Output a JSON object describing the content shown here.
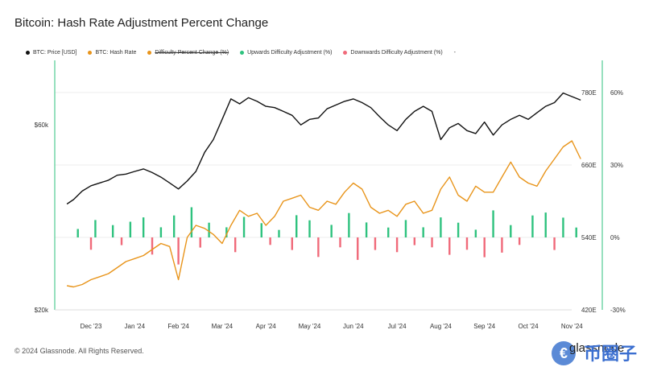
{
  "page": {
    "title": "Bitcoin: Hash Rate Adjustment Percent Change",
    "footer": "© 2024 Glassnode. All Rights Reserved.",
    "brand_text": "glassnode",
    "brand_cn": "币圈子"
  },
  "legend": [
    {
      "label": "BTC: Price [USD]",
      "color": "#111111",
      "strike": false
    },
    {
      "label": "BTC: Hash Rate",
      "color": "#e8941a",
      "strike": false
    },
    {
      "label": "Difficulty Percent Change (%)",
      "color": "#e8941a",
      "strike": true
    },
    {
      "label": "Upwards Difficulty Adjustment (%)",
      "color": "#2ec27e",
      "strike": false
    },
    {
      "label": "Downwards Difficulty Adjustment (%)",
      "color": "#f06a7a",
      "strike": false
    },
    {
      "label": "-",
      "color": "",
      "strike": false
    }
  ],
  "chart_data": {
    "type": "line",
    "title": "Bitcoin: Hash Rate Adjustment Percent Change",
    "x_ticks": [
      "Dec '23",
      "Jan '24",
      "Feb '24",
      "Mar '24",
      "Apr '24",
      "May '24",
      "Jun '24",
      "Jul '24",
      "Aug '24",
      "Sep '24",
      "Oct '24",
      "Nov '24"
    ],
    "x_range": [
      0,
      12
    ],
    "y_left_label_ticks": [
      "$20k",
      "$60k"
    ],
    "y_left_log_range": [
      20000,
      80000
    ],
    "y_hash_ticks": [
      "420E",
      "540E",
      "660E",
      "780E"
    ],
    "y_hash_range": [
      420,
      780
    ],
    "y_pct_ticks": [
      "-30%",
      "0%",
      "30%",
      "60%"
    ],
    "y_pct_range": [
      -30,
      60
    ],
    "series": [
      {
        "name": "BTC: Price [USD]",
        "color": "#111111",
        "axis": "price",
        "x": [
          -0.55,
          -0.4,
          -0.2,
          0,
          0.2,
          0.4,
          0.6,
          0.8,
          1.0,
          1.2,
          1.4,
          1.6,
          1.8,
          2.0,
          2.2,
          2.4,
          2.6,
          2.8,
          3.0,
          3.2,
          3.4,
          3.6,
          3.8,
          4.0,
          4.2,
          4.4,
          4.6,
          4.8,
          5.0,
          5.2,
          5.4,
          5.6,
          5.8,
          6.0,
          6.2,
          6.4,
          6.6,
          6.8,
          7.0,
          7.2,
          7.4,
          7.6,
          7.8,
          8.0,
          8.2,
          8.4,
          8.6,
          8.8,
          9.0,
          9.2,
          9.4,
          9.6,
          9.8,
          10.0,
          10.2,
          10.4,
          10.6,
          10.8,
          11.0,
          11.2
        ],
        "values": [
          37500,
          38500,
          40500,
          41800,
          42500,
          43200,
          44500,
          44800,
          45500,
          46200,
          45200,
          44000,
          42500,
          41000,
          43000,
          45500,
          51000,
          55000,
          62000,
          70000,
          68000,
          70500,
          69000,
          67000,
          66500,
          65000,
          63500,
          60000,
          62000,
          62500,
          66000,
          67500,
          69000,
          70000,
          68500,
          66500,
          63000,
          60000,
          58000,
          62000,
          65000,
          67000,
          65000,
          55000,
          59000,
          60500,
          58000,
          57000,
          61000,
          56500,
          60000,
          62000,
          63500,
          62000,
          64500,
          67000,
          68500,
          72500,
          71000,
          69500
        ]
      },
      {
        "name": "BTC: Hash Rate",
        "color": "#e8941a",
        "axis": "hash",
        "x": [
          -0.55,
          -0.4,
          -0.2,
          0,
          0.2,
          0.4,
          0.6,
          0.8,
          1.0,
          1.2,
          1.4,
          1.6,
          1.8,
          2.0,
          2.2,
          2.4,
          2.6,
          2.8,
          3.0,
          3.2,
          3.4,
          3.6,
          3.8,
          4.0,
          4.2,
          4.4,
          4.6,
          4.8,
          5.0,
          5.2,
          5.4,
          5.6,
          5.8,
          6.0,
          6.2,
          6.4,
          6.6,
          6.8,
          7.0,
          7.2,
          7.4,
          7.6,
          7.8,
          8.0,
          8.2,
          8.4,
          8.6,
          8.8,
          9.0,
          9.2,
          9.4,
          9.6,
          9.8,
          10.0,
          10.2,
          10.4,
          10.6,
          10.8,
          11.0,
          11.2
        ],
        "values": [
          460,
          458,
          462,
          470,
          475,
          480,
          490,
          500,
          505,
          510,
          520,
          530,
          525,
          470,
          540,
          560,
          555,
          545,
          530,
          560,
          585,
          575,
          580,
          560,
          575,
          600,
          605,
          610,
          590,
          585,
          600,
          595,
          615,
          630,
          620,
          590,
          580,
          585,
          575,
          595,
          600,
          580,
          585,
          620,
          640,
          610,
          600,
          625,
          615,
          615,
          640,
          665,
          640,
          630,
          625,
          650,
          670,
          690,
          700,
          670
        ]
      },
      {
        "name": "Upwards Difficulty Adjustment (%)",
        "color": "#2ec27e",
        "axis": "pct",
        "x": [
          -0.3,
          0.1,
          0.5,
          0.9,
          1.2,
          1.6,
          1.9,
          2.3,
          2.7,
          3.1,
          3.5,
          3.9,
          4.3,
          4.7,
          5.0,
          5.5,
          5.9,
          6.3,
          6.8,
          7.2,
          7.6,
          8.0,
          8.4,
          8.8,
          9.2,
          9.6,
          10.1,
          10.4,
          10.8,
          11.1
        ],
        "values": [
          3.5,
          7.2,
          5.1,
          6.5,
          8.3,
          4.2,
          9.1,
          12.5,
          6.1,
          4.2,
          8.5,
          5.9,
          3.1,
          9.2,
          7.1,
          5.2,
          10.1,
          6.2,
          4.1,
          7.2,
          4.2,
          8.3,
          6.1,
          3.2,
          11.2,
          5.1,
          9.1,
          10.3,
          8.2,
          4.1
        ]
      },
      {
        "name": "Downwards Difficulty Adjustment (%)",
        "color": "#f06a7a",
        "axis": "pct",
        "x": [
          0.0,
          0.7,
          1.4,
          2.0,
          2.5,
          3.3,
          4.1,
          4.6,
          5.2,
          5.7,
          6.1,
          6.5,
          7.0,
          7.4,
          7.8,
          8.2,
          8.6,
          9.0,
          9.4,
          9.8,
          10.6
        ],
        "values": [
          -5.1,
          -3.2,
          -7.1,
          -11.2,
          -4.2,
          -6.1,
          -3.1,
          -5.2,
          -8.1,
          -4.1,
          -9.3,
          -5.2,
          -6.1,
          -3.2,
          -4.1,
          -7.2,
          -5.1,
          -8.2,
          -6.3,
          -3.1,
          -5.2
        ]
      }
    ]
  }
}
